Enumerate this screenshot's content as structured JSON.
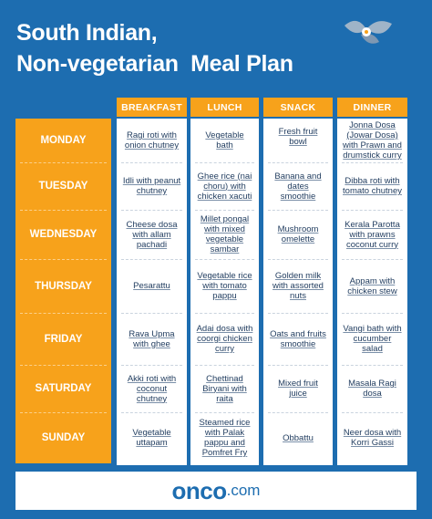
{
  "header": {
    "title": [
      "South Indian,",
      "Non-vegetarian  Meal Plan"
    ]
  },
  "table": {
    "columns": [
      "BREAKFAST",
      "LUNCH",
      "SNACK",
      "DINNER"
    ],
    "rows": [
      {
        "day": "MONDAY",
        "meals": [
          "Ragi roti with onion chutney",
          "Vegetable bath",
          "Fresh fruit bowl",
          "Jonna Dosa (Jowar Dosa) with Prawn and drumstick curry"
        ]
      },
      {
        "day": "TUESDAY",
        "meals": [
          "Idli with peanut chutney",
          "Ghee rice (nai choru) with chicken xacuti",
          "Banana and dates smoothie",
          "Dibba roti with tomato chutney"
        ]
      },
      {
        "day": "WEDNESDAY",
        "meals": [
          "Cheese dosa with allam pachadi",
          "Millet pongal with mixed vegetable sambar",
          "Mushroom omelette",
          "Kerala Parotta with prawns coconut curry"
        ]
      },
      {
        "day": "THURSDAY",
        "meals": [
          "Pesarattu",
          "Vegetable rice with tomato pappu",
          "Golden milk with assorted nuts",
          "Appam with chicken stew"
        ]
      },
      {
        "day": "FRIDAY",
        "meals": [
          "Rava Upma with ghee",
          "Adai dosa with coorgi chicken curry",
          "Oats and fruits smoothie",
          "Vangi bath with cucumber salad"
        ]
      },
      {
        "day": "SATURDAY",
        "meals": [
          "Akki roti with coconut chutney",
          "Chettinad Biryani with raita",
          "Mixed fruit juice",
          "Masala Ragi dosa"
        ]
      },
      {
        "day": "SUNDAY",
        "meals": [
          "Vegetable uttapam",
          "Steamed rice with Palak pappu and Pomfret Fry",
          "Obbattu",
          "Neer dosa with Korri Gassi"
        ]
      }
    ]
  },
  "footer": {
    "logo": "onco",
    "domain": ".com"
  }
}
